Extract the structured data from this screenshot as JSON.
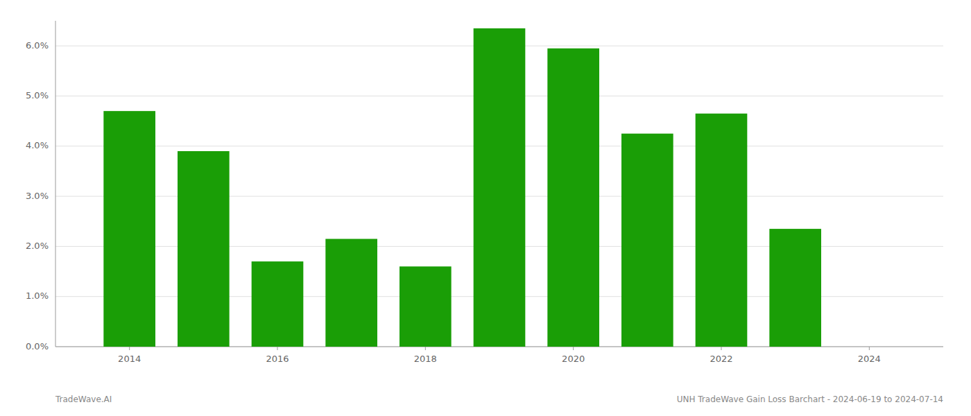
{
  "chart_data": {
    "type": "bar",
    "x": [
      2014,
      2015,
      2016,
      2017,
      2018,
      2019,
      2020,
      2021,
      2022,
      2023
    ],
    "values": [
      0.047,
      0.039,
      0.017,
      0.0215,
      0.016,
      0.0635,
      0.0595,
      0.0425,
      0.0465,
      0.0235
    ],
    "color": "#1a9e06",
    "xlim": [
      2013.0,
      2025.0
    ],
    "xticks": [
      2014,
      2016,
      2018,
      2020,
      2022,
      2024
    ],
    "ylim": [
      0,
      0.065
    ],
    "yticks": [
      {
        "value": 0.0,
        "label": "0.0%"
      },
      {
        "value": 0.01,
        "label": "1.0%"
      },
      {
        "value": 0.02,
        "label": "2.0%"
      },
      {
        "value": 0.03,
        "label": "3.0%"
      },
      {
        "value": 0.04,
        "label": "4.0%"
      },
      {
        "value": 0.05,
        "label": "5.0%"
      },
      {
        "value": 0.06,
        "label": "6.0%"
      }
    ],
    "grid": true,
    "annotations": [
      "TradeWave.AI",
      "UNH TradeWave Gain Loss Barchart - 2024-06-19 to 2024-07-14"
    ]
  }
}
